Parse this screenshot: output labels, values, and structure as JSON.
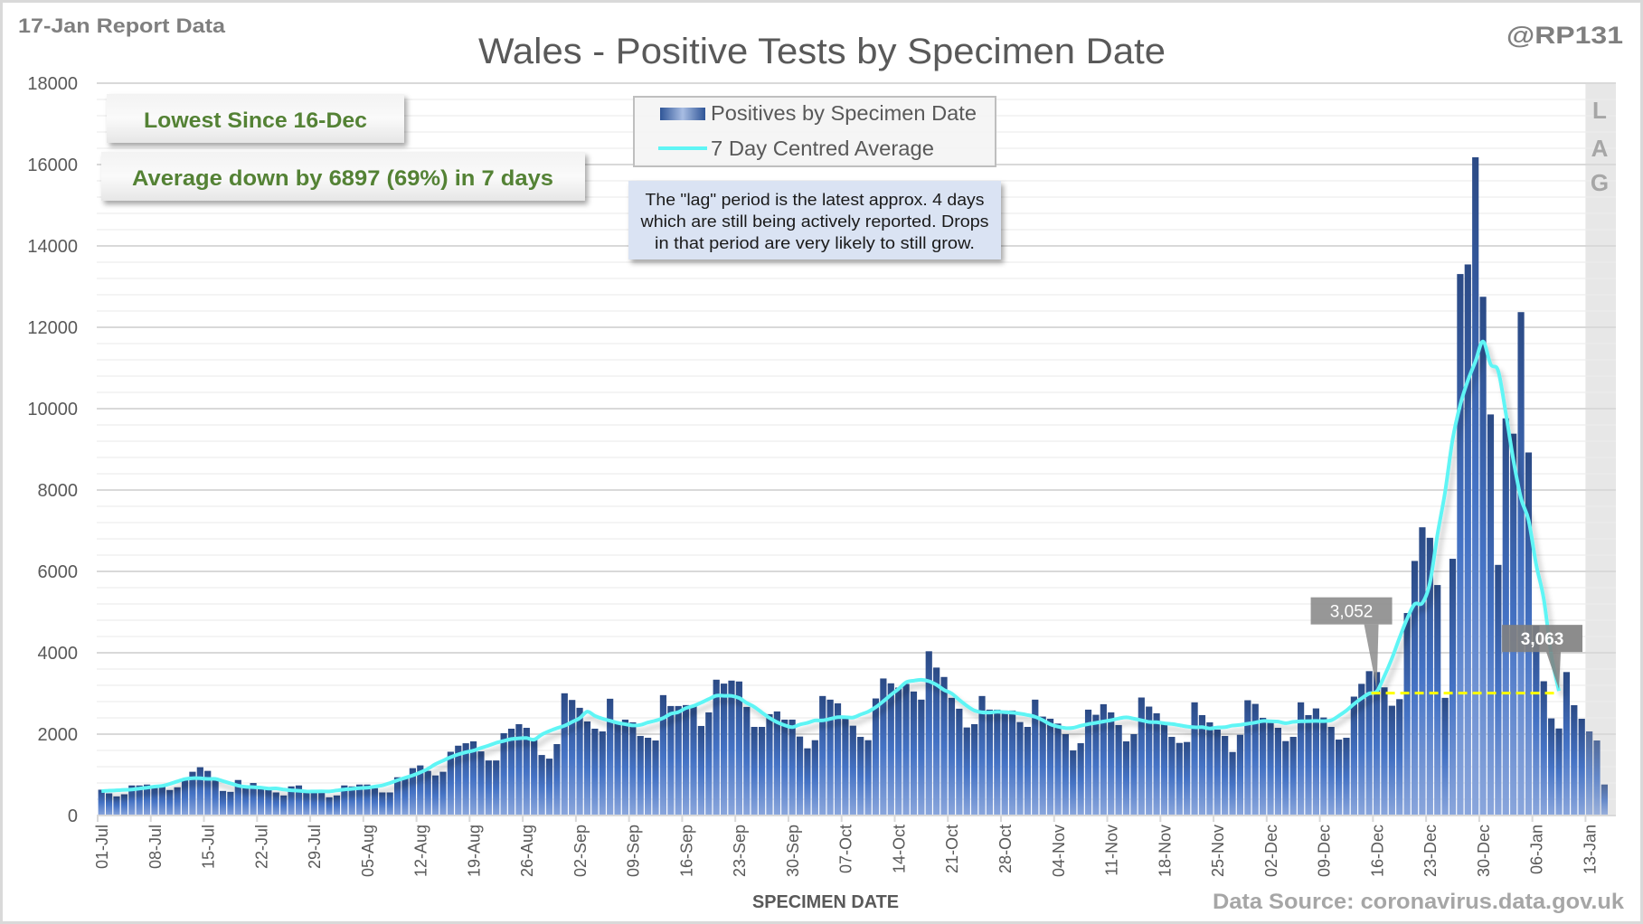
{
  "header": {
    "report_label": "17-Jan Report Data",
    "title": "Wales - Positive Tests by Specimen Date",
    "handle": "@RP131"
  },
  "callouts": {
    "lowest": "Lowest Since 16-Dec",
    "average_change": "Average down by 6897 (69%) in 7 days"
  },
  "legend": {
    "bars": "Positives by Specimen Date",
    "line": "7 Day Centred Average"
  },
  "note": {
    "lines": [
      "The \"lag\" period is the latest approx. 4 days",
      "which are still being actively reported. Drops",
      "in that period are very likely to still grow."
    ]
  },
  "lag": {
    "letters": [
      "L",
      "A",
      "G"
    ]
  },
  "footer": {
    "x_axis_title": "SPECIMEN DATE",
    "source": "Data Source: coronavirus.data.gov.uk"
  },
  "colors": {
    "bar_top": "#2b4a85",
    "bar_mid": "#4472c4",
    "bar_bottom": "#8aa6dc",
    "average_line": "#5ff5f5",
    "reference_line": "#ffff00",
    "callout_text": "#548235",
    "note_background": "#dae3f3",
    "lag_background": "#ebebeb"
  },
  "chart_data": {
    "type": "bar",
    "title": "Wales - Positive Tests by Specimen Date",
    "xlabel": "SPECIMEN DATE",
    "ylabel": "",
    "ylim": [
      0,
      18000
    ],
    "y_major_step": 2000,
    "y_minor_step": 400,
    "y_ticks": [
      "0",
      "2000",
      "4000",
      "6000",
      "8000",
      "10000",
      "12000",
      "14000",
      "16000",
      "18000"
    ],
    "x_start": "01-Jul",
    "x_range_days": [
      0,
      200
    ],
    "x_tick_every_days": 7,
    "x_ticks": [
      "01-Jul",
      "08-Jul",
      "15-Jul",
      "22-Jul",
      "29-Jul",
      "05-Aug",
      "12-Aug",
      "19-Aug",
      "26-Aug",
      "02-Sep",
      "09-Sep",
      "16-Sep",
      "23-Sep",
      "30-Sep",
      "07-Oct",
      "14-Oct",
      "21-Oct",
      "28-Oct",
      "04-Nov",
      "11-Nov",
      "18-Nov",
      "25-Nov",
      "02-Dec",
      "09-Dec",
      "16-Dec",
      "23-Dec",
      "30-Dec",
      "06-Jan",
      "13-Jan"
    ],
    "grid": true,
    "legend_position": "top-center",
    "lag_start_day_index": 196,
    "series": [
      {
        "name": "Positives by Specimen Date",
        "type": "bar",
        "values": [
          634,
          545,
          470,
          522,
          739,
          739,
          761,
          701,
          709,
          627,
          694,
          873,
          1075,
          1187,
          1097,
          873,
          604,
          582,
          873,
          709,
          799,
          709,
          649,
          567,
          493,
          716,
          739,
          590,
          590,
          567,
          448,
          493,
          739,
          716,
          761,
          761,
          672,
          567,
          567,
          940,
          918,
          1164,
          1231,
          1097,
          985,
          1075,
          1567,
          1716,
          1776,
          1822,
          1576,
          1353,
          1353,
          2022,
          2134,
          2245,
          2155,
          1888,
          1487,
          1398,
          1755,
          3004,
          2840,
          2647,
          2312,
          2134,
          2067,
          2870,
          2268,
          2357,
          2290,
          1955,
          1911,
          1844,
          2959,
          2691,
          2691,
          2714,
          2691,
          2201,
          2535,
          3338,
          3242,
          3316,
          3294,
          2669,
          2178,
          2178,
          2491,
          2558,
          2357,
          2357,
          1941,
          1651,
          1851,
          2937,
          2848,
          2758,
          2379,
          2208,
          1933,
          1851,
          2877,
          3368,
          3249,
          3145,
          3234,
          3048,
          2848,
          4037,
          3636,
          3405,
          2892,
          2625,
          2164,
          2245,
          2937,
          2602,
          2602,
          2580,
          2580,
          2297,
          2178,
          2848,
          2431,
          2379,
          2260,
          2000,
          1599,
          1777,
          2602,
          2476,
          2736,
          2535,
          2223,
          1822,
          2000,
          2900,
          2677,
          2513,
          2245,
          1933,
          1784,
          1807,
          2781,
          2468,
          2290,
          2112,
          1955,
          1561,
          1985,
          2833,
          2743,
          2401,
          2312,
          2156,
          1829,
          1933,
          2781,
          2468,
          2632,
          2409,
          2178,
          1866,
          1911,
          2922,
          3236,
          3548,
          3526,
          3150,
          2698,
          2860,
          4977,
          6257,
          7084,
          6826,
          5665,
          2892,
          6310,
          13309,
          13545,
          16179,
          12750,
          9858,
          6160,
          9761,
          9385,
          12373,
          8923,
          4666,
          3300,
          2387,
          2139,
          3526,
          2711,
          2378,
          2067,
          1844,
          762
        ]
      },
      {
        "name": "7 Day Centred Average",
        "type": "line",
        "values": [
          600,
          610,
          620,
          630,
          640,
          663,
          685,
          710,
          729,
          777,
          838,
          895,
          918,
          915,
          899,
          899,
          846,
          791,
          736,
          704,
          698,
          686,
          663,
          667,
          638,
          621,
          609,
          592,
          592,
          595,
          592,
          616,
          641,
          656,
          673,
          683,
          712,
          741,
          798,
          866,
          926,
          986,
          1059,
          1148,
          1262,
          1350,
          1434,
          1502,
          1555,
          1595,
          1660,
          1719,
          1786,
          1834,
          1879,
          1898,
          1904,
          1866,
          1990,
          2075,
          2146,
          2206,
          2299,
          2394,
          2553,
          2448,
          2379,
          2328,
          2277,
          2245,
          2214,
          2226,
          2287,
          2334,
          2395,
          2500,
          2542,
          2640,
          2694,
          2773,
          2862,
          2945,
          2942,
          2939,
          2888,
          2767,
          2669,
          2532,
          2398,
          2294,
          2219,
          2172,
          2236,
          2277,
          2335,
          2338,
          2376,
          2416,
          2416,
          2408,
          2482,
          2552,
          2662,
          2808,
          2967,
          3110,
          3276,
          3314,
          3336,
          3300,
          3213,
          3087,
          3001,
          2843,
          2696,
          2581,
          2536,
          2530,
          2549,
          2539,
          2527,
          2502,
          2470,
          2425,
          2342,
          2242,
          2185,
          2150,
          2156,
          2207,
          2246,
          2278,
          2310,
          2342,
          2385,
          2413,
          2381,
          2340,
          2299,
          2293,
          2266,
          2249,
          2219,
          2187,
          2168,
          2171,
          2139,
          2165,
          2172,
          2211,
          2227,
          2256,
          2284,
          2323,
          2315,
          2308,
          2269,
          2302,
          2315,
          2319,
          2324,
          2321,
          2341,
          2451,
          2581,
          2741,
          2880,
          2999,
          3052,
          3428,
          3859,
          4365,
          4836,
          5195,
          5223,
          5716,
          6906,
          7947,
          9247,
          10093,
          10692,
          11159,
          11652,
          11091,
          10924,
          9887,
          8732,
          7795,
          7256,
          6168,
          5331,
          3950,
          3063
        ]
      }
    ],
    "annotations": [
      {
        "label": "3,052",
        "day_index": 168,
        "value": 3052
      },
      {
        "label": "3,063",
        "day_index": 192,
        "value": 3063
      }
    ],
    "reference_line": {
      "value": 3052,
      "from_day_index": 168,
      "to_day_index": 192,
      "style": "dashed"
    }
  }
}
